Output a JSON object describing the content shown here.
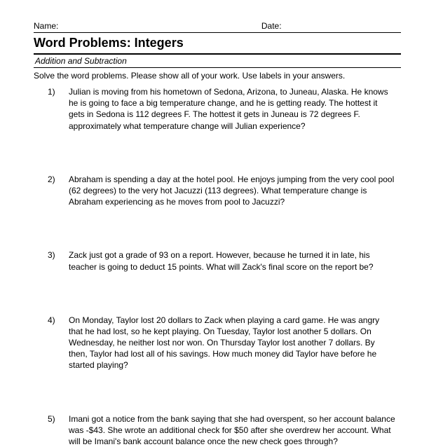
{
  "header": {
    "name_label": "Name:",
    "date_label": "Date:"
  },
  "title": "Word Problems: Integers",
  "subtitle": "Addition and Subtraction",
  "instructions": "Solve the word problems.  Please show all of your work.  Use labels in your answers.",
  "problems": [
    {
      "num": "1)",
      "text": "Julian is moving from his hometown of Sedona, Arizona, to Juneau, Alaska. He knows he is going to face a big temperature change, and he is getting ready. The hottest it gets in Sedona is 112 degrees F. The hottest it gets in Juneau is 72 degrees F. approximately what temperature change will Julian experience?"
    },
    {
      "num": "2)",
      "text": "Abraham is spending a day at the hotel pool.  He enjoys jumping from the very cool pool (62 degrees) to the very hot Jacuzzi (113 degrees).  What temperature change is Abraham experiencing as he moves from pool to Jacuzzi?"
    },
    {
      "num": "3)",
      "text": "Zack just got a grade of 93 on a report.  However, because he turned it in late, his teacher is going to deduct 15 points. What will Zack's final score on the report be?"
    },
    {
      "num": "4)",
      "text": "On Monday, Taylor lost 20 dollars to Zack when playing a card game.   He was angry that he had lost, so he kept playing.  On Tuesday, Taylor lost another 5 dollars.  On Wednesday, he neither lost nor won.  On Thursday Taylor lost another 7 dollars.  By then, Taylor had lost all of his savings.  How much money did Taylor have before he started playing?"
    },
    {
      "num": "5)",
      "text": "Imani got a notice from the bank saying that she had overspent, so her account balance was -$43. She wrote an additional check for $50 after she overdrew her account. What will be Imani's bank account balance once the new check goes through?"
    }
  ]
}
